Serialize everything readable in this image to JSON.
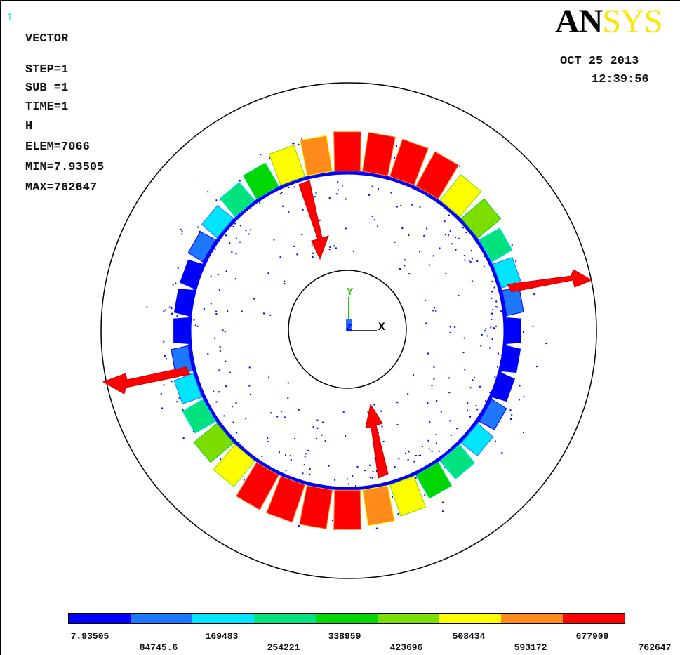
{
  "window_number": "1",
  "logo": {
    "an": "AN",
    "sys": "SYS"
  },
  "date": "OCT 25 2013",
  "time": "12:39:56",
  "info": [
    {
      "name": "plot-type-label",
      "text": "VECTOR"
    },
    {
      "name": "step-label",
      "text": "STEP=1"
    },
    {
      "name": "substep-label",
      "text": "SUB =1"
    },
    {
      "name": "time-label",
      "text": "TIME=1"
    },
    {
      "name": "field-label",
      "text": "H"
    },
    {
      "name": "element-label",
      "text": "ELEM=7066"
    },
    {
      "name": "min-label",
      "text": "MIN=7.93505"
    },
    {
      "name": "max-label",
      "text": "MAX=762647"
    }
  ],
  "triad": {
    "y": "Y",
    "z": "Z",
    "x": "X"
  },
  "legend": {
    "colors": [
      "#0000ff",
      "#1e78ff",
      "#00e5ff",
      "#00e27e",
      "#00d700",
      "#7cde00",
      "#ffff00",
      "#ff8c1a",
      "#ff0000"
    ],
    "labels_top": [
      "7.93505",
      "169483",
      "338959",
      "508434",
      "677909"
    ],
    "labels_bottom": [
      "84745.6",
      "254221",
      "423696",
      "593172",
      "762647"
    ]
  }
}
